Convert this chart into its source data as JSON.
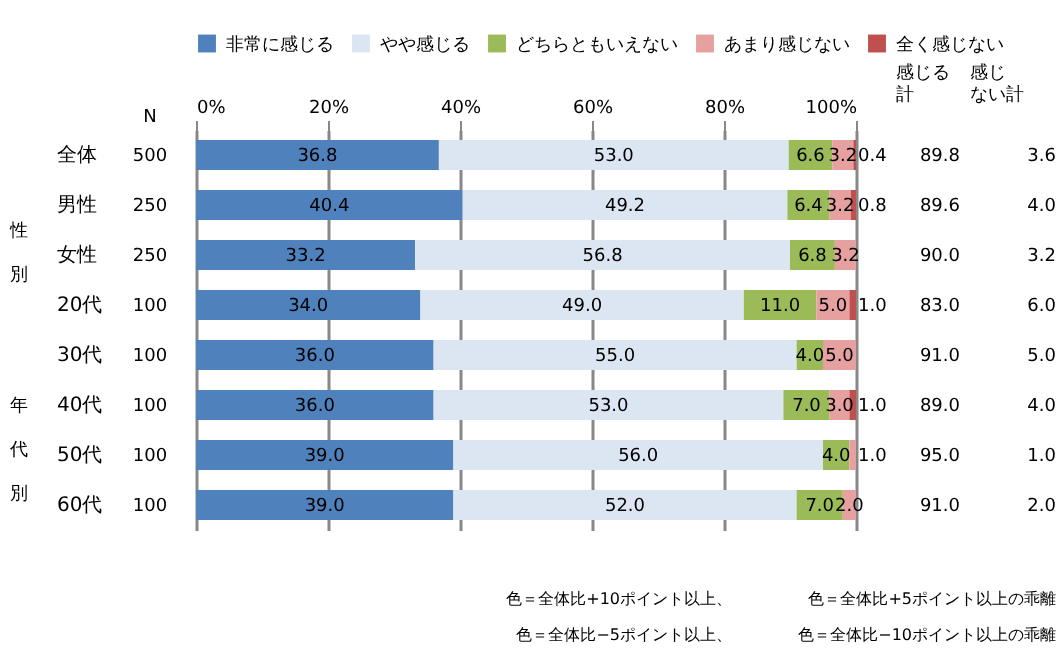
{
  "chart_data": {
    "type": "bar",
    "orientation": "horizontal",
    "stacked": true,
    "categories": [
      "全体",
      "男性",
      "女性",
      "20代",
      "30代",
      "40代",
      "50代",
      "60代"
    ],
    "series": [
      {
        "name": "非常に感じる",
        "color": "#4f81bd",
        "values": [
          36.8,
          40.4,
          33.2,
          34.0,
          36.0,
          36.0,
          39.0,
          39.0
        ],
        "value_labels": [
          "36.8",
          "40.4",
          "33.2",
          "34.0",
          "36.0",
          "36.0",
          "39.0",
          "39.0"
        ]
      },
      {
        "name": "やや感じる",
        "color": "#dce6f2",
        "values": [
          53.0,
          49.2,
          56.8,
          49.0,
          55.0,
          53.0,
          56.0,
          52.0
        ],
        "value_labels": [
          "53.0",
          "49.2",
          "56.8",
          "49.0",
          "55.0",
          "53.0",
          "56.0",
          "52.0"
        ]
      },
      {
        "name": "どちらともいえない",
        "color": "#9bbb59",
        "values": [
          6.6,
          6.4,
          6.8,
          11.0,
          4.0,
          7.0,
          4.0,
          7.0
        ],
        "value_labels": [
          "6.6",
          "6.4",
          "6.8",
          "11.0",
          "4.0",
          "7.0",
          "4.0",
          "7.0"
        ]
      },
      {
        "name": "あまり感じない",
        "color": "#e6a0a0",
        "values": [
          3.2,
          3.2,
          3.2,
          5.0,
          5.0,
          3.0,
          1.0,
          2.0
        ],
        "value_labels": [
          "3.2",
          "3.2",
          "3.2",
          "5.0",
          "5.0",
          "3.0",
          "1.0",
          "2.0"
        ]
      },
      {
        "name": "全く感じない",
        "color": "#c0504d",
        "values": [
          0.4,
          0.8,
          0,
          1.0,
          0,
          1.0,
          0,
          0
        ],
        "value_labels": [
          "0.4",
          "0.8",
          null,
          "1.0",
          null,
          "1.0",
          null,
          null
        ]
      }
    ],
    "xlim": [
      0,
      100
    ],
    "xticks": [
      {
        "value": 0,
        "label": "0%"
      },
      {
        "value": 20,
        "label": "20%"
      },
      {
        "value": 40,
        "label": "40%"
      },
      {
        "value": 60,
        "label": "60%"
      },
      {
        "value": 80,
        "label": "80%"
      },
      {
        "value": 100,
        "label": "100%"
      }
    ],
    "grid": "x",
    "legend": "top",
    "annotations": [
      "N",
      "500",
      "250",
      "250",
      "100",
      "100",
      "100",
      "100",
      "100",
      "感じる計",
      "感じない計",
      "89.8",
      "3.6",
      "89.6",
      "4.0",
      "90.0",
      "3.2",
      "83.0",
      "6.0",
      "91.0",
      "5.0",
      "89.0",
      "4.0",
      "95.0",
      "1.0",
      "91.0",
      "2.0",
      "性別",
      "年代別",
      "色＝全体比+10ポイント以上、",
      "色＝全体比+5ポイント以上の乖離",
      "色＝全体比−5ポイント以上、",
      "色＝全体比−10ポイント以上の乖離"
    ]
  }
}
